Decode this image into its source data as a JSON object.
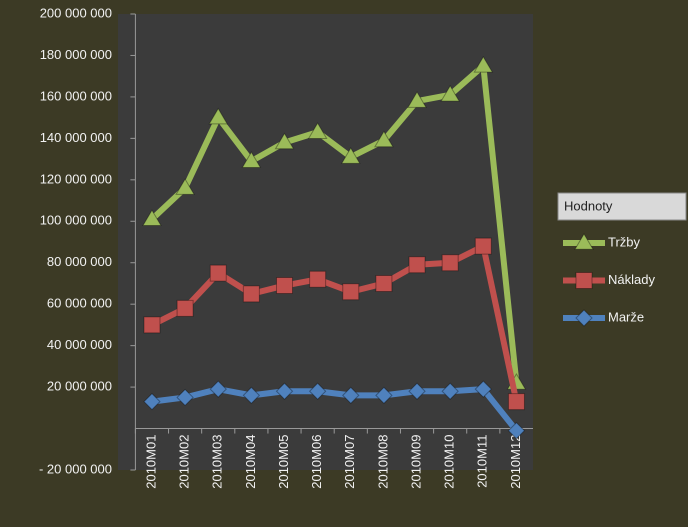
{
  "chart_data": {
    "type": "line",
    "categories": [
      "2010M01",
      "2010M02",
      "2010M03",
      "2010M04",
      "2010M05",
      "2010M06",
      "2010M07",
      "2010M08",
      "2010M09",
      "2010M10",
      "2010M11",
      "2010M12"
    ],
    "series": [
      {
        "name": "Tržby",
        "color": "#9bbb59",
        "marker": "triangle",
        "values": [
          101000000,
          116000000,
          150000000,
          129000000,
          138000000,
          143000000,
          131000000,
          139000000,
          158000000,
          161000000,
          175000000,
          22000000
        ]
      },
      {
        "name": "Náklady",
        "color": "#c0504d",
        "marker": "square",
        "values": [
          50000000,
          58000000,
          75000000,
          65000000,
          69000000,
          72000000,
          66000000,
          70000000,
          79000000,
          80000000,
          88000000,
          13000000
        ]
      },
      {
        "name": "Marže",
        "color": "#4f81bd",
        "marker": "diamond",
        "values": [
          13000000,
          15000000,
          19000000,
          16000000,
          18000000,
          18000000,
          16000000,
          16000000,
          18000000,
          18000000,
          19000000,
          -1000000
        ]
      }
    ],
    "legend_title": "Hodnoty",
    "ylim": [
      -20000000,
      200000000
    ],
    "yticks": [
      {
        "value": -20000000,
        "label": "- 20 000 000"
      },
      {
        "value": 20000000,
        "label": "20 000 000"
      },
      {
        "value": 40000000,
        "label": "40 000 000"
      },
      {
        "value": 60000000,
        "label": "60 000 000"
      },
      {
        "value": 80000000,
        "label": "80 000 000"
      },
      {
        "value": 100000000,
        "label": "100 000 000"
      },
      {
        "value": 120000000,
        "label": "120 000 000"
      },
      {
        "value": 140000000,
        "label": "140 000 000"
      },
      {
        "value": 160000000,
        "label": "160 000 000"
      },
      {
        "value": 180000000,
        "label": "180 000 000"
      },
      {
        "value": 200000000,
        "label": "200 000 000"
      }
    ],
    "legend": "right"
  }
}
